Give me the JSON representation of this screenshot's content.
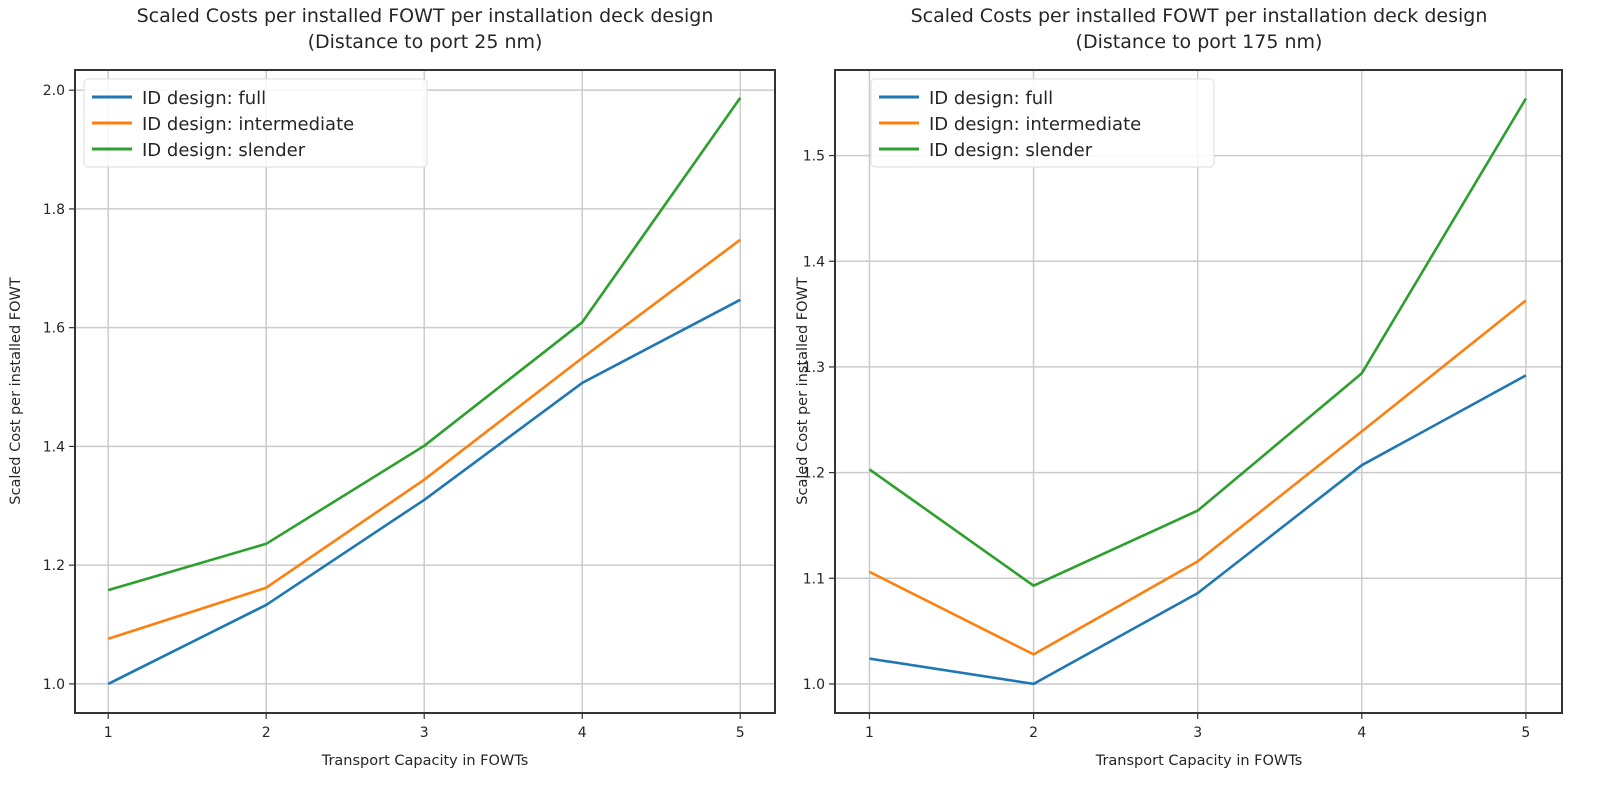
{
  "chart_data": [
    {
      "type": "line",
      "title": "Scaled Costs per installed FOWT per installation deck design",
      "subtitle": "(Distance to port 25 nm)",
      "xlabel": "Transport Capacity in FOWTs",
      "ylabel": "Scaled Cost per installed FOWT",
      "x": [
        1,
        2,
        3,
        4,
        5
      ],
      "xticks": [
        "1",
        "2",
        "3",
        "4",
        "5"
      ],
      "yticks": [
        1.0,
        1.2,
        1.4,
        1.6,
        1.8,
        2.0
      ],
      "ytick_labels": [
        "1.0",
        "1.2",
        "1.4",
        "1.6",
        "1.8",
        "2.0"
      ],
      "xlim": [
        0.79,
        5.22
      ],
      "ylim": [
        0.951,
        2.034
      ],
      "grid": true,
      "legend_position": "top-left",
      "series": [
        {
          "name": "ID design: full",
          "color": "#1f77b4",
          "values": [
            1.0,
            1.133,
            1.31,
            1.507,
            1.647
          ]
        },
        {
          "name": "ID design: intermediate",
          "color": "#ff7f0e",
          "values": [
            1.076,
            1.162,
            1.344,
            1.549,
            1.748
          ]
        },
        {
          "name": "ID design: slender",
          "color": "#2ca02c",
          "values": [
            1.158,
            1.236,
            1.401,
            1.609,
            1.987
          ]
        }
      ]
    },
    {
      "type": "line",
      "title": "Scaled Costs per installed FOWT per installation deck design",
      "subtitle": "(Distance to port 175 nm)",
      "xlabel": "Transport Capacity in FOWTs",
      "ylabel": "Scaled Cost per installed FOWT",
      "x": [
        1,
        2,
        3,
        4,
        5
      ],
      "xticks": [
        "1",
        "2",
        "3",
        "4",
        "5"
      ],
      "yticks": [
        1.0,
        1.1,
        1.2,
        1.3,
        1.4,
        1.5
      ],
      "ytick_labels": [
        "1.0",
        "1.1",
        "1.2",
        "1.3",
        "1.4",
        "1.5"
      ],
      "xlim": [
        0.79,
        5.22
      ],
      "ylim": [
        0.9725,
        1.581
      ],
      "grid": true,
      "legend_position": "top-left",
      "series": [
        {
          "name": "ID design: full",
          "color": "#1f77b4",
          "values": [
            1.024,
            1.0,
            1.086,
            1.207,
            1.292
          ]
        },
        {
          "name": "ID design: intermediate",
          "color": "#ff7f0e",
          "values": [
            1.106,
            1.028,
            1.116,
            1.239,
            1.363
          ]
        },
        {
          "name": "ID design: slender",
          "color": "#2ca02c",
          "values": [
            1.203,
            1.093,
            1.164,
            1.294,
            1.554
          ]
        }
      ]
    }
  ]
}
